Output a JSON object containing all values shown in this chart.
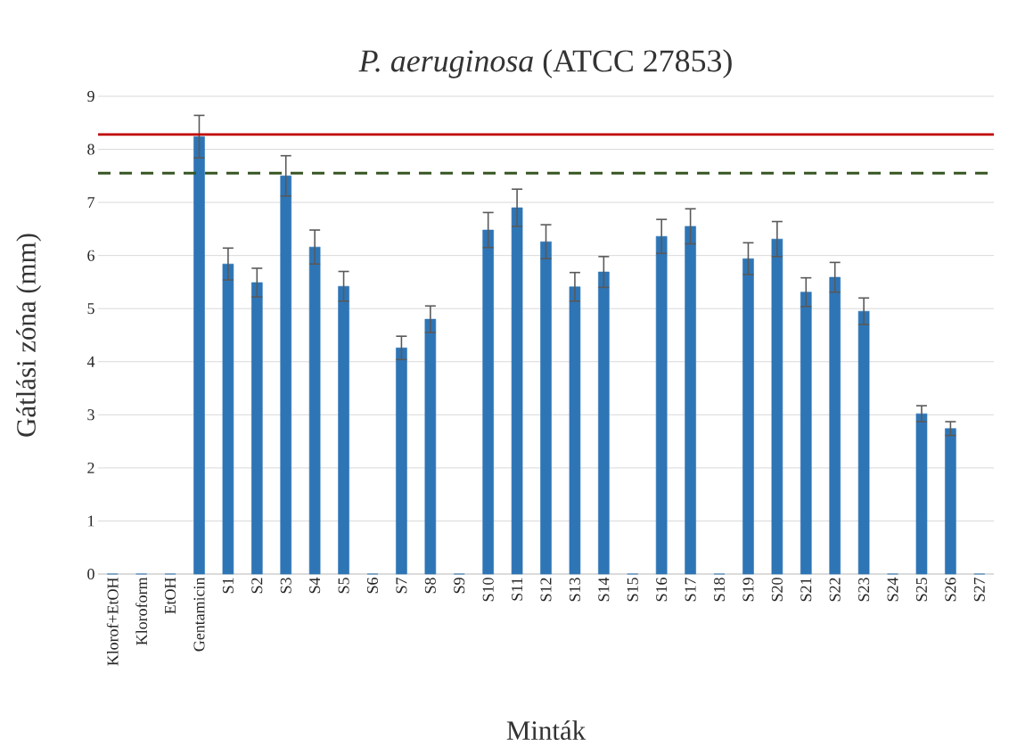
{
  "chart_data": {
    "type": "bar",
    "title": "*P. aeruginosa* (ATCC 27853)",
    "xlabel": "Minták",
    "ylabel": "Gátlási zóna (mm)",
    "categories": [
      "Klorof+EtOH",
      "Kloroform",
      "EtOH",
      "Gentamicin",
      "S1",
      "S2",
      "S3",
      "S4",
      "S5",
      "S6",
      "S7",
      "S8",
      "S9",
      "S10",
      "S11",
      "S12",
      "S13",
      "S14",
      "S15",
      "S16",
      "S17",
      "S18",
      "S19",
      "S20",
      "S21",
      "S22",
      "S23",
      "S24",
      "S25",
      "S26",
      "S27"
    ],
    "values": [
      0,
      0,
      0,
      8.24,
      5.84,
      5.49,
      7.5,
      6.16,
      5.42,
      0,
      4.26,
      4.8,
      0,
      6.48,
      6.9,
      6.26,
      5.41,
      5.69,
      0,
      6.36,
      6.55,
      0,
      5.94,
      6.31,
      5.31,
      5.59,
      4.95,
      0,
      3.02,
      2.74,
      0
    ],
    "errors": [
      null,
      null,
      null,
      0.4,
      0.3,
      0.27,
      0.38,
      0.32,
      0.28,
      null,
      0.22,
      0.25,
      null,
      0.33,
      0.35,
      0.32,
      0.27,
      0.29,
      null,
      0.32,
      0.33,
      null,
      0.3,
      0.33,
      0.27,
      0.28,
      0.25,
      null,
      0.15,
      0.13,
      null
    ],
    "color": "#2e75b6",
    "ylim": [
      0,
      9
    ],
    "yticks": [
      0,
      1,
      2,
      3,
      4,
      5,
      6,
      7,
      8,
      9
    ],
    "grid": "y",
    "ref_lines": [
      {
        "axis": "y",
        "value": 8.28,
        "color": "#c00000",
        "line_style": "solid"
      },
      {
        "axis": "y",
        "value": 7.55,
        "color": "#375623",
        "line_style": "dashed"
      }
    ]
  }
}
